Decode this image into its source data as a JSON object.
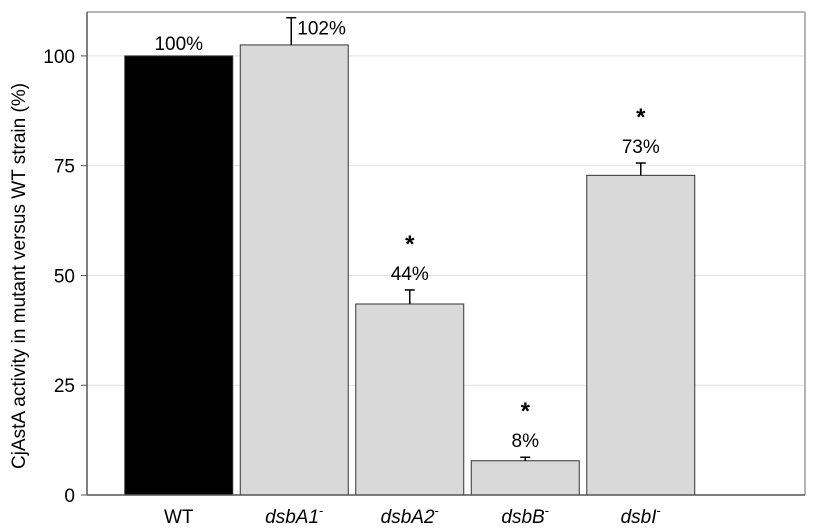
{
  "chart_data": {
    "type": "bar",
    "ylabel": "CjAstA activity in mutant versus WT strain (%)",
    "xlabel": "",
    "ylim": [
      0,
      110
    ],
    "yticks": [
      0,
      25,
      50,
      75,
      100
    ],
    "ytick_labels": [
      "0",
      "25",
      "50",
      "75",
      "100"
    ],
    "grid": "horizontal",
    "categories": [
      {
        "base": "WT",
        "sup": "",
        "italic": false
      },
      {
        "base": "dsbA1",
        "sup": "-",
        "italic": true
      },
      {
        "base": "dsbA2",
        "sup": "-",
        "italic": true
      },
      {
        "base": "dsbB",
        "sup": "-",
        "italic": true
      },
      {
        "base": "dsbI",
        "sup": "-",
        "italic": true
      }
    ],
    "values": [
      100,
      102.5,
      43.5,
      7.8,
      72.8
    ],
    "error_upper": [
      0,
      6.2,
      3.2,
      0.8,
      2.8
    ],
    "labels": [
      "100%",
      "102%",
      "44%",
      "8%",
      "73%"
    ],
    "significance": [
      "",
      "",
      "*",
      "*",
      "*"
    ],
    "bar_colors": [
      "#000000",
      "#d9d9d9",
      "#d9d9d9",
      "#d9d9d9",
      "#d9d9d9"
    ]
  }
}
